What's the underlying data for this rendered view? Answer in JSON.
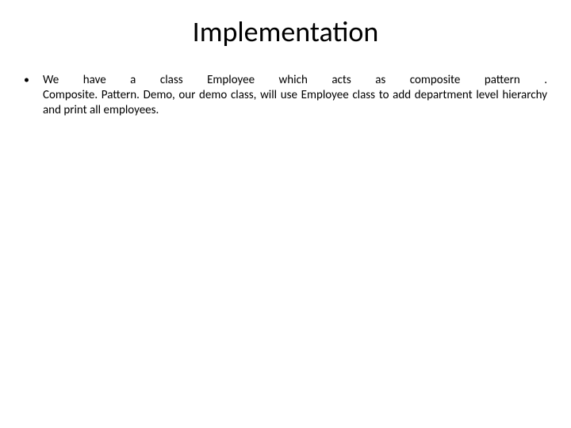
{
  "slide": {
    "title": "Implementation",
    "bullet_symbol": "•",
    "body_line1": "We have a class Employee which acts as composite pattern .",
    "body_rest": "Composite. Pattern. Demo, our demo class, will use Employee class to add department level hierarchy and print all employees.",
    "title_fontsize": 36,
    "body_fontsize": 15,
    "background_color": "#ffffff",
    "text_color": "#000000"
  }
}
